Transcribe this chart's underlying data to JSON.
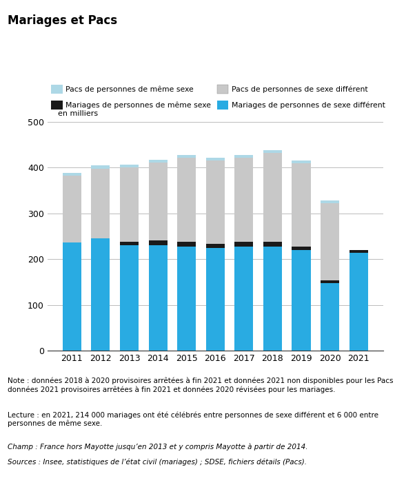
{
  "years": [
    2011,
    2012,
    2013,
    2014,
    2015,
    2016,
    2017,
    2018,
    2019,
    2020,
    2021
  ],
  "mariages_diff_sexe": [
    236,
    245,
    231,
    231,
    228,
    225,
    228,
    228,
    220,
    148,
    214
  ],
  "mariages_meme_sexe": [
    0,
    0,
    7,
    10,
    10,
    9,
    10,
    10,
    7,
    6,
    6
  ],
  "pacs_diff_sexe": [
    147,
    153,
    162,
    170,
    183,
    182,
    183,
    194,
    183,
    168,
    0
  ],
  "pacs_meme_sexe": [
    6,
    7,
    6,
    6,
    6,
    6,
    6,
    6,
    6,
    6,
    0
  ],
  "color_mariages_diff": "#29abe2",
  "color_mariages_meme": "#1a1a1a",
  "color_pacs_diff": "#c8c8c8",
  "color_pacs_meme": "#add8e6",
  "title": "Mariages et Pacs",
  "ylabel": "en milliers",
  "ylim": [
    0,
    500
  ],
  "yticks": [
    0,
    100,
    200,
    300,
    400,
    500
  ],
  "note_text": "Note : données 2018 à 2020 provisoires arrêtées à fin 2021 et données 2021 non disponibles pour les Pacs ;\ndonnées 2021 provisoires arrêtées à fin 2021 et données 2020 révisées pour les mariages.",
  "lecture_text": "Lecture : en 2021, 214 000 mariages ont été célébrés entre personnes de sexe différent et 6 000 entre\npersonnes de même sexe.",
  "champ_text": "Champ : France hors Mayotte jusqu’en 2013 et y compris Mayotte à partir de 2014.",
  "sources_text": "Sources : Insee, statistiques de l’état civil (mariages) ; SDSE, fichiers détails (Pacs).",
  "legend_pacs_meme": "Pacs de personnes de même sexe",
  "legend_pacs_diff": "Pacs de personnes de sexe différent",
  "legend_mar_meme": "Mariages de personnes de même sexe",
  "legend_mar_diff": "Mariages de personnes de sexe différent",
  "note_underline": "Pacs"
}
